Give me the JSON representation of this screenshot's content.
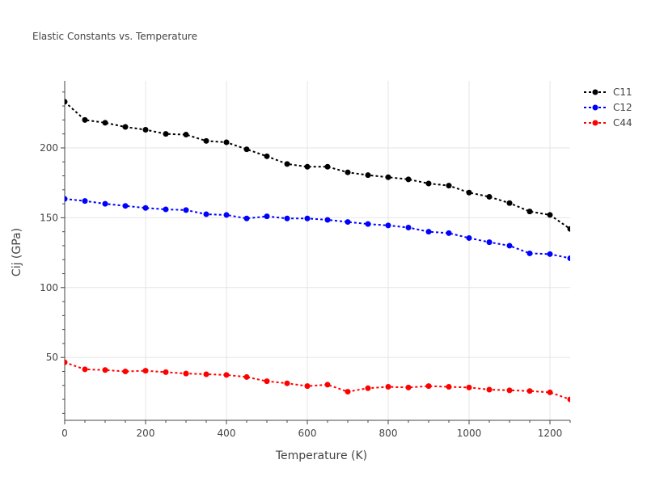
{
  "chart_data": {
    "type": "line",
    "title": "Elastic Constants vs. Temperature",
    "xlabel": "Temperature (K)",
    "ylabel": "Cij (GPa)",
    "xlim": [
      0,
      1250
    ],
    "ylim": [
      5,
      248
    ],
    "xticks": [
      0,
      200,
      400,
      600,
      800,
      1000,
      1200
    ],
    "yticks": [
      50,
      100,
      150,
      200
    ],
    "grid": true,
    "legend_position": "top-right",
    "x": [
      0,
      50,
      100,
      150,
      200,
      250,
      300,
      350,
      400,
      450,
      500,
      550,
      600,
      650,
      700,
      750,
      800,
      850,
      900,
      950,
      1000,
      1050,
      1100,
      1150,
      1200,
      1250
    ],
    "series": [
      {
        "name": "C11",
        "color": "#000000",
        "values": [
          233,
          220,
          218,
          215,
          213,
          210,
          209.5,
          205,
          204,
          199,
          194,
          188.5,
          186.5,
          186.5,
          182.5,
          180.5,
          179,
          177.5,
          174.5,
          173,
          168,
          165,
          160.5,
          154.5,
          152,
          142
        ]
      },
      {
        "name": "C12",
        "color": "#0000ff",
        "values": [
          163.5,
          162,
          160,
          158.5,
          157,
          156,
          155.5,
          152.5,
          152,
          149.5,
          151,
          149.5,
          149.5,
          148.5,
          147,
          145.5,
          144.5,
          143,
          140,
          139,
          135.5,
          132.5,
          130,
          124.5,
          124,
          121
        ]
      },
      {
        "name": "C44",
        "color": "#ff0000",
        "values": [
          46.5,
          41.5,
          41,
          40,
          40.5,
          39.5,
          38.5,
          38,
          37.5,
          36,
          33,
          31.5,
          29.5,
          30.5,
          25.5,
          28,
          29,
          28.5,
          29.5,
          29,
          28.5,
          27,
          26.5,
          26,
          25,
          20
        ]
      }
    ]
  }
}
